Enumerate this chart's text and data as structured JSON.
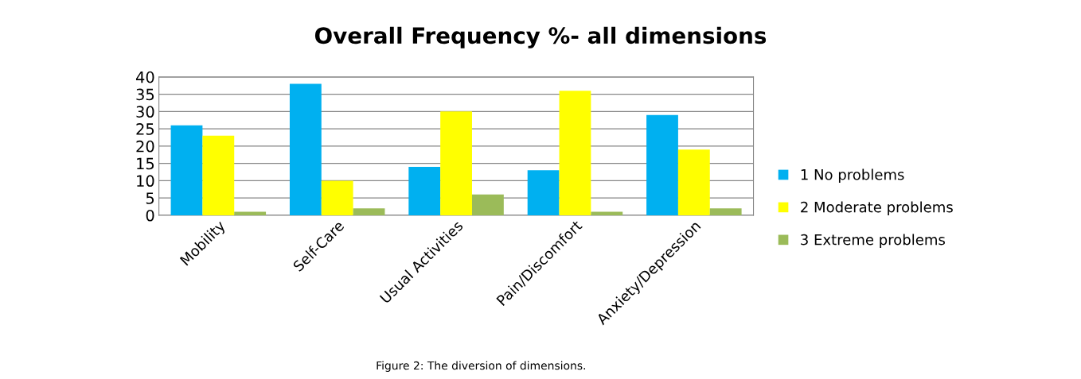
{
  "chart_data": {
    "type": "bar",
    "title": "Overall Frequency %- all dimensions",
    "categories": [
      "Mobility",
      "Self-Care",
      "Usual Activities",
      "Pain/Discomfort",
      "Anxiety/Depression"
    ],
    "series": [
      {
        "name": "1 No problems",
        "color": "#00b0f0",
        "values": [
          26,
          38,
          14,
          13,
          29
        ]
      },
      {
        "name": "2 Moderate problems",
        "color": "#ffff00",
        "values": [
          23,
          10,
          30,
          36,
          19
        ]
      },
      {
        "name": "3 Extreme problems",
        "color": "#9bbb59",
        "values": [
          1,
          2,
          6,
          1,
          2
        ]
      }
    ],
    "ylim": [
      0,
      40
    ],
    "yticks": [
      0,
      5,
      10,
      15,
      20,
      25,
      30,
      35,
      40
    ],
    "grid": "y",
    "legend": "right",
    "annotations": [
      "Figure 2: The diversion of dimensions."
    ]
  }
}
